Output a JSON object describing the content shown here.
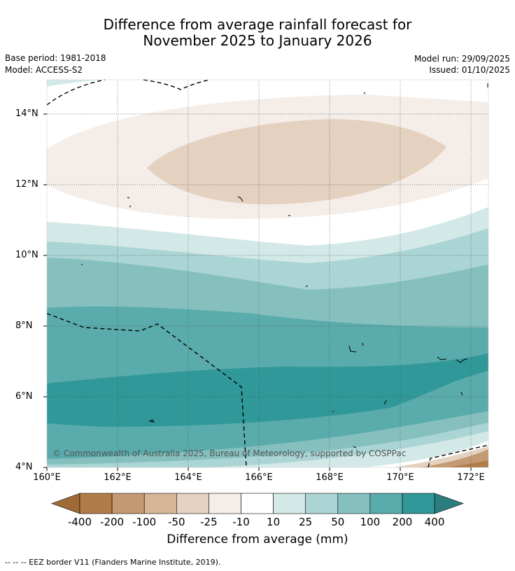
{
  "title_line1": "Difference from average rainfall forecast for",
  "title_line2": "November 2025 to January 2026",
  "meta": {
    "base_period": "Base period: 1981-2018",
    "model": "Model: ACCESS-S2",
    "model_run": "Model run: 29/09/2025",
    "issued": "Issued: 01/10/2025"
  },
  "map": {
    "lat_labels": [
      "14°N",
      "12°N",
      "10°N",
      "8°N",
      "6°N",
      "4°N"
    ],
    "lon_labels": [
      "160°E",
      "162°E",
      "164°E",
      "166°E",
      "168°E",
      "170°E",
      "172°E"
    ],
    "copyright": "© Commonwealth of Australia 2025, Bureau of Meteorology, supported by COSPPac"
  },
  "colorbar": {
    "labels": [
      "-400",
      "-200",
      "-100",
      "-50",
      "-25",
      "-10",
      "10",
      "25",
      "50",
      "100",
      "200",
      "400"
    ],
    "colors": [
      "#a06a36",
      "#b07d4a",
      "#c39a72",
      "#d5b596",
      "#e4d1c0",
      "#f4ede8",
      "#ffffff",
      "#d3e9e8",
      "#abd5d4",
      "#85c0bf",
      "#5aabab",
      "#309898",
      "#2c7e7e"
    ],
    "title": "Difference from average (mm)"
  },
  "footer": "--  --  -- EEZ border V11 (Flanders Marine Institute, 2019)."
}
